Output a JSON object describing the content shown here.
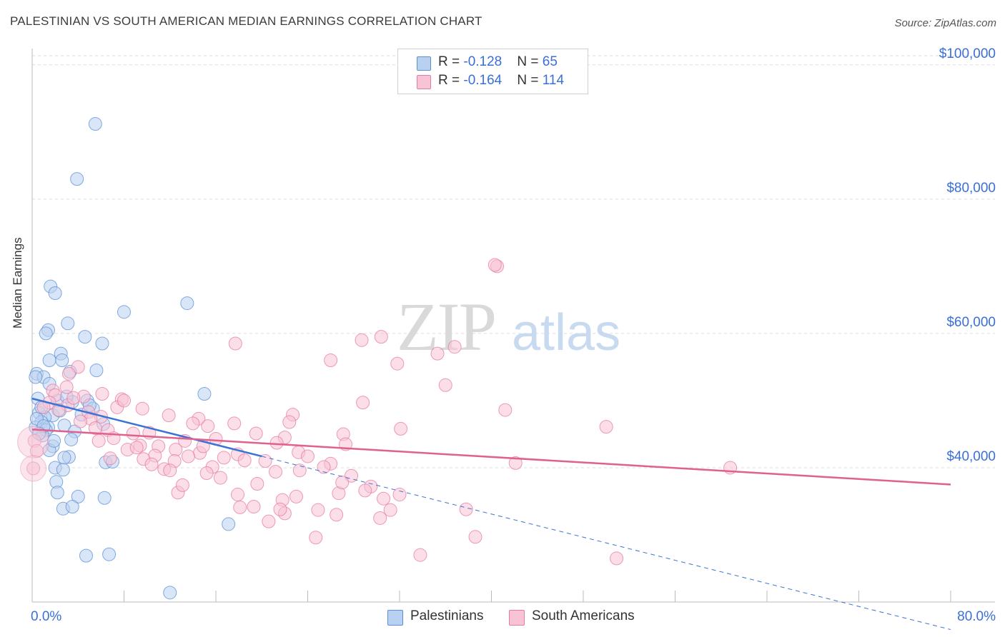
{
  "header": {
    "title": "PALESTINIAN VS SOUTH AMERICAN MEDIAN EARNINGS CORRELATION CHART",
    "source": "Source: ZipAtlas.com"
  },
  "legend": {
    "rows": [
      {
        "r_label": "R = ",
        "r_value": "-0.128",
        "n_label": "N = ",
        "n_value": "65"
      },
      {
        "r_label": "R = ",
        "r_value": "-0.164",
        "n_label": "N = ",
        "n_value": "114"
      }
    ]
  },
  "colors": {
    "palestinians": "#5b8fd6",
    "palestinians_fill": "#b9d1f1",
    "south_americans": "#e57ba0",
    "south_americans_fill": "#f7c3d5",
    "axis_tick_text": "#3a6fd8",
    "grid": "#dddddd"
  },
  "chart_data": {
    "type": "scatter",
    "title": "PALESTINIAN VS SOUTH AMERICAN MEDIAN EARNINGS CORRELATION CHART",
    "xlabel": "",
    "ylabel": "Median Earnings",
    "xlim": [
      0,
      80
    ],
    "ylim": [
      20000,
      102000
    ],
    "x_tick_labels": [
      "0.0%",
      "80.0%"
    ],
    "y_ticks": [
      40000,
      60000,
      80000,
      100000
    ],
    "y_tick_labels": [
      "$40,000",
      "$60,000",
      "$80,000",
      "$100,000"
    ],
    "grid": true,
    "legend_position": "top-center",
    "watermark": "ZIPatlas",
    "series": [
      {
        "name": "Palestinians",
        "R": -0.128,
        "N": 65,
        "trend": {
          "x0": 0,
          "y0": 50300,
          "x1": 20,
          "y1": 41700,
          "dashed_to_x": 80,
          "dashed_to_y": 15900
        },
        "points": [
          [
            5.5,
            91200
          ],
          [
            3.9,
            83000
          ],
          [
            1.6,
            67000
          ],
          [
            2.0,
            66000
          ],
          [
            13.5,
            64500
          ],
          [
            8.0,
            63200
          ],
          [
            3.1,
            61500
          ],
          [
            1.4,
            60500
          ],
          [
            1.2,
            60000
          ],
          [
            4.6,
            59500
          ],
          [
            6.1,
            58500
          ],
          [
            2.5,
            57000
          ],
          [
            1.5,
            56000
          ],
          [
            2.6,
            56000
          ],
          [
            3.3,
            54300
          ],
          [
            5.6,
            54500
          ],
          [
            0.4,
            54000
          ],
          [
            1.0,
            53500
          ],
          [
            0.3,
            53500
          ],
          [
            1.5,
            52500
          ],
          [
            15.0,
            51000
          ],
          [
            0.5,
            50300
          ],
          [
            2.2,
            50000
          ],
          [
            3.5,
            49800
          ],
          [
            4.8,
            50000
          ],
          [
            5.3,
            48800
          ],
          [
            1.8,
            47800
          ],
          [
            0.6,
            48200
          ],
          [
            1.1,
            47500
          ],
          [
            0.8,
            46800
          ],
          [
            1.4,
            46000
          ],
          [
            0.3,
            46000
          ],
          [
            2.8,
            46300
          ],
          [
            1.2,
            45600
          ],
          [
            3.7,
            45400
          ],
          [
            6.2,
            46500
          ],
          [
            0.9,
            44800
          ],
          [
            3.4,
            44200
          ],
          [
            1.8,
            43200
          ],
          [
            1.5,
            42600
          ],
          [
            3.2,
            41600
          ],
          [
            2.8,
            41500
          ],
          [
            6.4,
            40800
          ],
          [
            7.0,
            40900
          ],
          [
            2.0,
            40000
          ],
          [
            2.7,
            39700
          ],
          [
            2.1,
            37900
          ],
          [
            2.2,
            36300
          ],
          [
            4.0,
            35700
          ],
          [
            6.3,
            35500
          ],
          [
            2.7,
            33900
          ],
          [
            3.5,
            34200
          ],
          [
            17.1,
            31600
          ],
          [
            4.7,
            26900
          ],
          [
            6.7,
            27100
          ],
          [
            12.0,
            21400
          ],
          [
            0.4,
            47300
          ],
          [
            1.0,
            46200
          ],
          [
            0.8,
            49000
          ],
          [
            2.4,
            48500
          ],
          [
            4.3,
            47900
          ],
          [
            5.0,
            49300
          ],
          [
            0.6,
            45100
          ],
          [
            1.9,
            44000
          ],
          [
            3.0,
            50600
          ]
        ]
      },
      {
        "name": "South Americans",
        "R": -0.164,
        "N": 114,
        "trend": {
          "x0": 0,
          "y0": 45700,
          "x1": 80,
          "y1": 37500
        },
        "points": [
          [
            40.5,
            70000
          ],
          [
            40.3,
            70200
          ],
          [
            17.7,
            58500
          ],
          [
            28.7,
            59000
          ],
          [
            30.4,
            59500
          ],
          [
            35.3,
            57000
          ],
          [
            36.8,
            58000
          ],
          [
            26.0,
            56000
          ],
          [
            31.8,
            55500
          ],
          [
            4.0,
            55000
          ],
          [
            3.2,
            54000
          ],
          [
            36.0,
            52300
          ],
          [
            3.0,
            52000
          ],
          [
            1.8,
            51500
          ],
          [
            6.1,
            51000
          ],
          [
            2.0,
            50800
          ],
          [
            4.5,
            50600
          ],
          [
            7.8,
            50200
          ],
          [
            28.8,
            49700
          ],
          [
            1.5,
            49700
          ],
          [
            3.1,
            49300
          ],
          [
            1.0,
            49000
          ],
          [
            7.4,
            49000
          ],
          [
            9.6,
            48800
          ],
          [
            4.9,
            48300
          ],
          [
            41.2,
            48600
          ],
          [
            11.9,
            47800
          ],
          [
            22.7,
            47900
          ],
          [
            6.0,
            47600
          ],
          [
            5.1,
            47300
          ],
          [
            14.5,
            47300
          ],
          [
            22.4,
            46800
          ],
          [
            17.6,
            46600
          ],
          [
            14.0,
            46600
          ],
          [
            15.3,
            46200
          ],
          [
            32.1,
            45800
          ],
          [
            50.0,
            46100
          ],
          [
            6.6,
            45600
          ],
          [
            8.8,
            45100
          ],
          [
            10.2,
            45200
          ],
          [
            19.5,
            45100
          ],
          [
            27.1,
            45000
          ],
          [
            22.0,
            44500
          ],
          [
            16.0,
            44300
          ],
          [
            5.8,
            44000
          ],
          [
            21.3,
            43700
          ],
          [
            27.3,
            43500
          ],
          [
            9.4,
            43300
          ],
          [
            11.0,
            43200
          ],
          [
            8.3,
            42700
          ],
          [
            12.5,
            42700
          ],
          [
            23.2,
            42300
          ],
          [
            14.6,
            42200
          ],
          [
            17.9,
            42000
          ],
          [
            10.7,
            41800
          ],
          [
            13.6,
            41700
          ],
          [
            24.0,
            41700
          ],
          [
            16.7,
            41500
          ],
          [
            9.7,
            41300
          ],
          [
            6.8,
            41400
          ],
          [
            12.4,
            41000
          ],
          [
            18.5,
            41100
          ],
          [
            20.3,
            41000
          ],
          [
            26.0,
            40600
          ],
          [
            42.1,
            40700
          ],
          [
            15.7,
            40100
          ],
          [
            11.5,
            39800
          ],
          [
            21.2,
            39400
          ],
          [
            23.3,
            39600
          ],
          [
            27.8,
            38800
          ],
          [
            60.8,
            40000
          ],
          [
            0.1,
            39900
          ],
          [
            16.4,
            38500
          ],
          [
            19.6,
            37600
          ],
          [
            29.5,
            37200
          ],
          [
            17.9,
            36000
          ],
          [
            12.7,
            36300
          ],
          [
            26.7,
            36200
          ],
          [
            13.1,
            37400
          ],
          [
            32.0,
            36000
          ],
          [
            23.0,
            35700
          ],
          [
            21.8,
            35200
          ],
          [
            30.6,
            35400
          ],
          [
            29.0,
            36600
          ],
          [
            19.3,
            34200
          ],
          [
            24.9,
            33700
          ],
          [
            22.0,
            33200
          ],
          [
            18.1,
            34100
          ],
          [
            21.6,
            33800
          ],
          [
            37.8,
            33800
          ],
          [
            31.2,
            33700
          ],
          [
            26.5,
            33000
          ],
          [
            30.3,
            32500
          ],
          [
            20.6,
            32000
          ],
          [
            24.7,
            29600
          ],
          [
            38.6,
            29700
          ],
          [
            33.8,
            27000
          ],
          [
            50.9,
            26500
          ],
          [
            0.2,
            44000
          ],
          [
            0.4,
            42500
          ],
          [
            2.3,
            48600
          ],
          [
            3.6,
            50400
          ],
          [
            4.2,
            46900
          ],
          [
            5.5,
            45900
          ],
          [
            8.0,
            50000
          ],
          [
            7.1,
            44400
          ],
          [
            9.1,
            43000
          ],
          [
            13.3,
            44000
          ],
          [
            14.9,
            43200
          ],
          [
            10.4,
            40500
          ],
          [
            12.0,
            39600
          ],
          [
            15.2,
            39200
          ],
          [
            25.4,
            40100
          ],
          [
            27.0,
            37800
          ]
        ]
      }
    ]
  },
  "bottom_legend": {
    "items": [
      {
        "label": "Palestinians"
      },
      {
        "label": "South Americans"
      }
    ]
  }
}
